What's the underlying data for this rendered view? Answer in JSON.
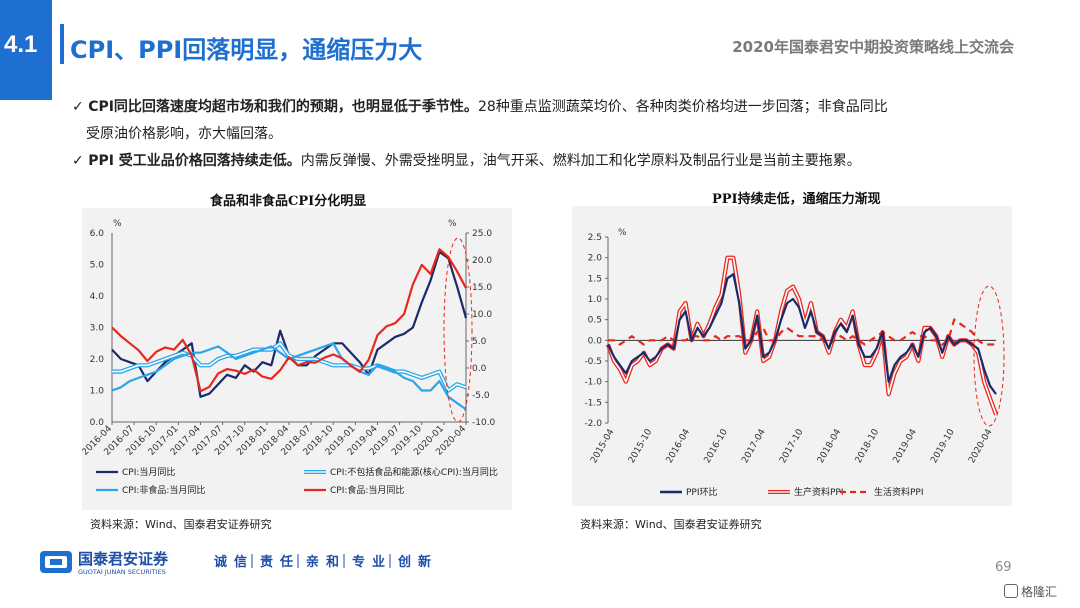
{
  "section_number": "4.1",
  "title": "CPI、PPI回落明显，通缩压力大",
  "conference": "2020年国泰君安中期投资策略线上交流会",
  "bullet1": {
    "check": "✓",
    "bold": "CPI同比回落速度均超市场和我们的预期，也明显低于季节性。",
    "text": "28种重点监测蔬菜均价、各种肉类价格均进一步回落；非食品同比",
    "text2": "受原油价格影响，亦大幅回落。"
  },
  "bullet2": {
    "check": "✓",
    "bold": "PPI 受工业品价格回落持续走低。",
    "text": "内需反弹慢、外需受挫明显，油气开采、燃料加工和化学原料及制品行业是当前主要拖累。"
  },
  "colors": {
    "accent": "#1f6fd1",
    "navy": "#1b2a6b",
    "light_blue": "#2aa6e8",
    "red": "#e8281e"
  },
  "chart_data": [
    {
      "type": "line",
      "title": "食品和非食品CPI分化明显",
      "left_axis_unit": "%",
      "right_axis_unit": "%",
      "ylim_left": [
        0,
        6
      ],
      "yticks_left": [
        "6.0",
        "5.0",
        "4.0",
        "3.0",
        "2.0",
        "1.0",
        "0.0"
      ],
      "ylim_right": [
        -10,
        25
      ],
      "yticks_right": [
        "25.0",
        "20.0",
        "15.0",
        "10.0",
        "5.0",
        "0.0",
        "-5.0",
        "-10.0"
      ],
      "x_labels": [
        "2016-04",
        "2016-07",
        "2016-10",
        "2017-01",
        "2017-04",
        "2017-07",
        "2017-10",
        "2018-01",
        "2018-04",
        "2018-07",
        "2018-10",
        "2019-01",
        "2019-04",
        "2019-07",
        "2019-10",
        "2020-01",
        "2020-04"
      ],
      "legend": [
        "CPI:当月同比",
        "CPI:不包括食品和能源(核心CPI):当月同比",
        "CPI:非食品:当月同比",
        "CPI:食品:当月同比"
      ],
      "series": [
        {
          "name": "CPI:当月同比",
          "axis": "left",
          "color": "#1b2a6b",
          "values": [
            2.3,
            2.0,
            1.9,
            1.8,
            1.3,
            1.6,
            1.9,
            2.1,
            2.3,
            2.5,
            0.8,
            0.9,
            1.2,
            1.5,
            1.4,
            1.8,
            1.6,
            1.9,
            1.8,
            2.9,
            2.1,
            1.8,
            1.8,
            2.1,
            2.3,
            2.5,
            2.5,
            2.2,
            1.9,
            1.5,
            2.3,
            2.5,
            2.7,
            2.8,
            3.0,
            3.8,
            4.5,
            5.4,
            5.2,
            4.3,
            3.3
          ]
        },
        {
          "name": "CPI:不包括食品和能源(核心CPI):当月同比",
          "axis": "left",
          "color": "#2aa6e8",
          "style": "double",
          "values": [
            1.6,
            1.6,
            1.7,
            1.8,
            1.8,
            1.9,
            2.0,
            2.1,
            2.2,
            2.1,
            1.8,
            1.8,
            2.0,
            2.1,
            2.1,
            2.2,
            2.3,
            2.3,
            2.3,
            2.5,
            2.1,
            2.0,
            2.0,
            2.0,
            1.9,
            1.8,
            1.8,
            1.8,
            1.7,
            1.7,
            1.8,
            1.7,
            1.6,
            1.6,
            1.5,
            1.4,
            1.5,
            1.6,
            1.0,
            1.2,
            1.1
          ]
        },
        {
          "name": "CPI:非食品:当月同比",
          "axis": "left",
          "color": "#2aa6e8",
          "values": [
            1.0,
            1.1,
            1.3,
            1.4,
            1.5,
            1.6,
            1.8,
            2.0,
            2.1,
            2.2,
            2.2,
            2.3,
            2.4,
            2.2,
            2.0,
            2.1,
            2.2,
            2.3,
            2.4,
            2.2,
            2.0,
            2.1,
            2.2,
            2.3,
            2.4,
            2.5,
            2.0,
            1.8,
            1.6,
            1.5,
            1.8,
            1.7,
            1.6,
            1.4,
            1.3,
            1.0,
            1.0,
            1.3,
            0.8,
            0.6,
            0.4
          ]
        },
        {
          "name": "CPI:食品:当月同比",
          "axis": "right",
          "color": "#e8281e",
          "values": [
            7.5,
            5.9,
            4.6,
            3.3,
            1.3,
            3.0,
            3.8,
            3.4,
            5.2,
            2.3,
            -4.3,
            -3.5,
            -1.0,
            -0.2,
            -0.5,
            -1.1,
            -0.3,
            -1.6,
            -2.0,
            -0.4,
            2.0,
            0.5,
            1.1,
            1.0,
            1.9,
            2.5,
            1.8,
            0.4,
            -0.7,
            1.5,
            6.1,
            7.7,
            8.3,
            10.0,
            15.5,
            19.1,
            17.4,
            22.0,
            20.6,
            17.9,
            14.8
          ]
        }
      ]
    },
    {
      "type": "line",
      "title": "PPI持续走低，通缩压力渐现",
      "y_axis_unit": "%",
      "ylim": [
        -2.0,
        2.5
      ],
      "yticks": [
        "2.5",
        "2.0",
        "1.5",
        "1.0",
        "0.5",
        "0.0",
        "-0.5",
        "-1.0",
        "-1.5",
        "-2.0"
      ],
      "x_labels": [
        "2015-04",
        "2015-10",
        "2016-04",
        "2016-10",
        "2017-04",
        "2017-10",
        "2018-04",
        "2018-10",
        "2019-04",
        "2019-10",
        "2020-04"
      ],
      "legend": [
        "PPI环比",
        "生产资料PPI",
        "生活资料PPI"
      ],
      "series": [
        {
          "name": "PPI环比",
          "color": "#1b2a6b",
          "values": [
            -0.1,
            -0.4,
            -0.6,
            -0.8,
            -0.5,
            -0.4,
            -0.3,
            -0.5,
            -0.4,
            -0.2,
            -0.1,
            -0.2,
            0.5,
            0.7,
            0.0,
            0.3,
            0.1,
            0.3,
            0.6,
            0.9,
            1.5,
            1.6,
            0.9,
            -0.2,
            0.0,
            0.6,
            -0.4,
            -0.3,
            0.0,
            0.5,
            0.9,
            1.0,
            0.8,
            0.3,
            0.7,
            0.2,
            0.1,
            -0.2,
            0.2,
            0.4,
            0.2,
            0.6,
            -0.1,
            -0.4,
            -0.4,
            -0.2,
            0.2,
            -1.0,
            -0.6,
            -0.4,
            -0.3,
            -0.1,
            -0.4,
            0.2,
            0.3,
            0.1,
            -0.3,
            0.1,
            -0.1,
            0.0,
            0.0,
            -0.1,
            -0.2,
            -0.7,
            -1.1,
            -1.3
          ]
        },
        {
          "name": "生产资料PPI",
          "color": "#e8281e",
          "style": "double",
          "values": [
            -0.1,
            -0.5,
            -0.7,
            -1.0,
            -0.6,
            -0.5,
            -0.3,
            -0.6,
            -0.5,
            -0.2,
            -0.1,
            -0.2,
            0.7,
            0.9,
            0.0,
            0.4,
            0.1,
            0.4,
            0.8,
            1.1,
            2.0,
            2.0,
            1.1,
            -0.3,
            0.0,
            0.7,
            -0.5,
            -0.4,
            0.0,
            0.7,
            1.2,
            1.3,
            1.0,
            0.4,
            0.9,
            0.2,
            0.1,
            -0.3,
            0.2,
            0.5,
            0.3,
            0.7,
            -0.1,
            -0.6,
            -0.6,
            -0.3,
            0.2,
            -1.3,
            -0.8,
            -0.5,
            -0.4,
            -0.1,
            -0.5,
            0.3,
            0.3,
            0.1,
            -0.4,
            0.1,
            -0.1,
            0.0,
            0.0,
            -0.1,
            -0.3,
            -1.0,
            -1.4,
            -1.8
          ]
        },
        {
          "name": "生活资料PPI",
          "color": "#e8281e",
          "style": "dashed",
          "values": [
            0.0,
            0.0,
            -0.1,
            0.0,
            0.1,
            0.0,
            -0.1,
            0.0,
            0.0,
            0.0,
            0.1,
            0.0,
            0.0,
            0.0,
            0.1,
            0.1,
            0.0,
            0.0,
            0.1,
            0.0,
            0.1,
            0.1,
            0.1,
            0.0,
            0.0,
            0.2,
            0.3,
            0.0,
            0.0,
            0.2,
            0.3,
            0.2,
            0.1,
            0.1,
            0.1,
            0.1,
            0.0,
            -0.1,
            0.0,
            0.1,
            0.0,
            0.1,
            0.0,
            -0.1,
            0.0,
            0.1,
            0.2,
            0.1,
            0.0,
            0.0,
            0.1,
            0.2,
            0.1,
            0.1,
            0.0,
            0.0,
            -0.1,
            0.0,
            0.5,
            0.4,
            0.3,
            0.2,
            0.0,
            -0.1,
            -0.1,
            -0.1
          ]
        }
      ]
    }
  ],
  "source1": "资料来源：Wind、国泰君安证券研究",
  "source2": "资料来源：Wind、国泰君安证券研究",
  "footer": {
    "company": "国泰君安证券",
    "company_en": "GUOTAI JUNAN SECURITIES",
    "values": [
      "诚",
      "信",
      "责",
      "任",
      "亲",
      "和",
      "专",
      "业",
      "创",
      "新"
    ]
  },
  "page_number": "69",
  "watermark": "格隆汇"
}
